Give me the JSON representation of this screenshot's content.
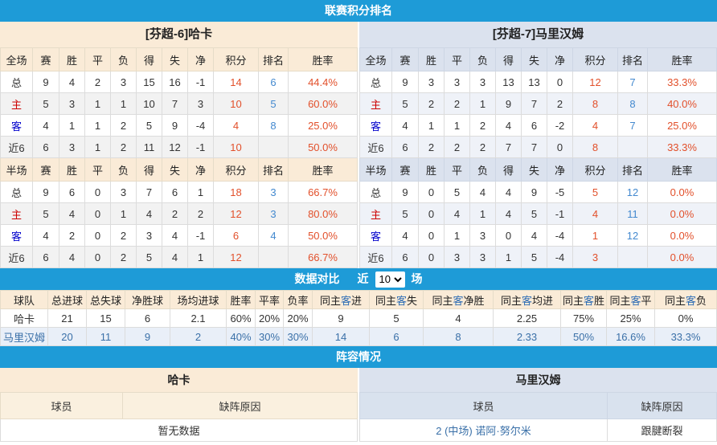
{
  "standings": {
    "title": "联赛积分排名",
    "columns_full": [
      "全场",
      "赛",
      "胜",
      "平",
      "负",
      "得",
      "失",
      "净",
      "积分",
      "排名",
      "胜率"
    ],
    "columns_half": [
      "半场",
      "赛",
      "胜",
      "平",
      "负",
      "得",
      "失",
      "净",
      "积分",
      "排名",
      "胜率"
    ],
    "teams": [
      {
        "title": "[芬超-6]哈卡",
        "full": [
          {
            "label": "总",
            "type": "total",
            "cells": [
              "9",
              "4",
              "2",
              "3",
              "15",
              "16",
              "-1"
            ],
            "points": "14",
            "rank": "6",
            "rate": "44.4%"
          },
          {
            "label": "主",
            "type": "home",
            "cells": [
              "5",
              "3",
              "1",
              "1",
              "10",
              "7",
              "3"
            ],
            "points": "10",
            "rank": "5",
            "rate": "60.0%"
          },
          {
            "label": "客",
            "type": "away",
            "cells": [
              "4",
              "1",
              "1",
              "2",
              "5",
              "9",
              "-4"
            ],
            "points": "4",
            "rank": "8",
            "rate": "25.0%"
          },
          {
            "label": "近6",
            "type": "recent",
            "cells": [
              "6",
              "3",
              "1",
              "2",
              "11",
              "12",
              "-1"
            ],
            "points": "10",
            "rank": "",
            "rate": "50.0%"
          }
        ],
        "half": [
          {
            "label": "总",
            "type": "total",
            "cells": [
              "9",
              "6",
              "0",
              "3",
              "7",
              "6",
              "1"
            ],
            "points": "18",
            "rank": "3",
            "rate": "66.7%"
          },
          {
            "label": "主",
            "type": "home",
            "cells": [
              "5",
              "4",
              "0",
              "1",
              "4",
              "2",
              "2"
            ],
            "points": "12",
            "rank": "3",
            "rate": "80.0%"
          },
          {
            "label": "客",
            "type": "away",
            "cells": [
              "4",
              "2",
              "0",
              "2",
              "3",
              "4",
              "-1"
            ],
            "points": "6",
            "rank": "4",
            "rate": "50.0%"
          },
          {
            "label": "近6",
            "type": "recent",
            "cells": [
              "6",
              "4",
              "0",
              "2",
              "5",
              "4",
              "1"
            ],
            "points": "12",
            "rank": "",
            "rate": "66.7%"
          }
        ]
      },
      {
        "title": "[芬超-7]马里汉姆",
        "full": [
          {
            "label": "总",
            "type": "total",
            "cells": [
              "9",
              "3",
              "3",
              "3",
              "13",
              "13",
              "0"
            ],
            "points": "12",
            "rank": "7",
            "rate": "33.3%"
          },
          {
            "label": "主",
            "type": "home",
            "cells": [
              "5",
              "2",
              "2",
              "1",
              "9",
              "7",
              "2"
            ],
            "points": "8",
            "rank": "8",
            "rate": "40.0%"
          },
          {
            "label": "客",
            "type": "away",
            "cells": [
              "4",
              "1",
              "1",
              "2",
              "4",
              "6",
              "-2"
            ],
            "points": "4",
            "rank": "7",
            "rate": "25.0%"
          },
          {
            "label": "近6",
            "type": "recent",
            "cells": [
              "6",
              "2",
              "2",
              "2",
              "7",
              "7",
              "0"
            ],
            "points": "8",
            "rank": "",
            "rate": "33.3%"
          }
        ],
        "half": [
          {
            "label": "总",
            "type": "total",
            "cells": [
              "9",
              "0",
              "5",
              "4",
              "4",
              "9",
              "-5"
            ],
            "points": "5",
            "rank": "12",
            "rate": "0.0%"
          },
          {
            "label": "主",
            "type": "home",
            "cells": [
              "5",
              "0",
              "4",
              "1",
              "4",
              "5",
              "-1"
            ],
            "points": "4",
            "rank": "11",
            "rate": "0.0%"
          },
          {
            "label": "客",
            "type": "away",
            "cells": [
              "4",
              "0",
              "1",
              "3",
              "0",
              "4",
              "-4"
            ],
            "points": "1",
            "rank": "12",
            "rate": "0.0%"
          },
          {
            "label": "近6",
            "type": "recent",
            "cells": [
              "6",
              "0",
              "3",
              "3",
              "1",
              "5",
              "-4"
            ],
            "points": "3",
            "rank": "",
            "rate": "0.0%"
          }
        ]
      }
    ]
  },
  "compare": {
    "title": "数据对比",
    "near_label": "近",
    "games_label": "场",
    "selected_games": "10",
    "game_options": [
      "10"
    ],
    "headers": [
      "球队",
      "总进球",
      "总失球",
      "净胜球",
      "场均进球",
      "胜率",
      "平率",
      "负率",
      "同主客进",
      "同主客失",
      "同主客净胜",
      "同主客均进",
      "同主客胜",
      "同主客平",
      "同主客负"
    ],
    "rows": [
      {
        "team": "哈卡",
        "values": [
          "21",
          "15",
          "6",
          "2.1",
          "60%",
          "20%",
          "20%",
          "9",
          "5",
          "4",
          "2.25",
          "75%",
          "25%",
          "0%"
        ]
      },
      {
        "team": "马里汉姆",
        "values": [
          "20",
          "11",
          "9",
          "2",
          "40%",
          "30%",
          "30%",
          "14",
          "6",
          "8",
          "2.33",
          "50%",
          "16.6%",
          "33.3%"
        ]
      }
    ]
  },
  "lineup": {
    "title": "阵容情况",
    "panels": [
      {
        "team": "哈卡",
        "player_header": "球员",
        "reason_header": "缺阵原因",
        "empty_text": "暂无数据",
        "rows": []
      },
      {
        "team": "马里汉姆",
        "player_header": "球员",
        "reason_header": "缺阵原因",
        "empty_text": "",
        "rows": [
          {
            "player": "2 (中场) 诺阿·努尔米",
            "reason": "跟腱断裂"
          }
        ]
      }
    ]
  }
}
